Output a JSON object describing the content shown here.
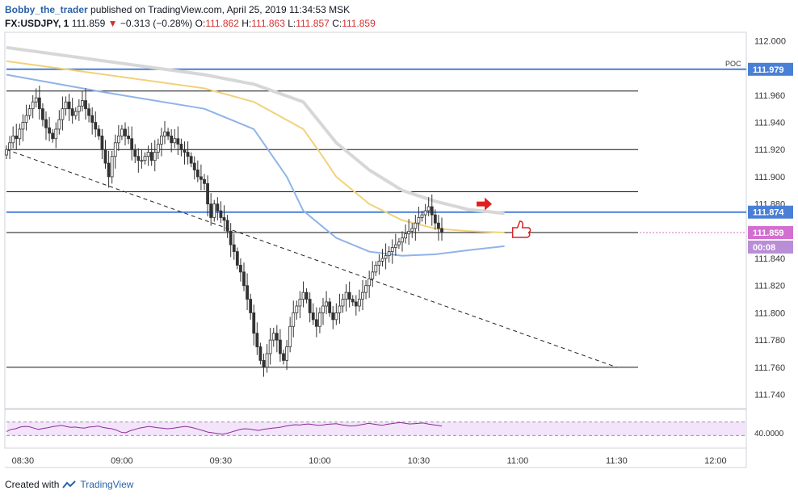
{
  "header": {
    "author": "Bobby_the_trader",
    "published": "published on TradingView.com, April 25, 2019 11:34:53 MSK",
    "symbol": "FX:USDJPY, 1",
    "last": "111.859",
    "change": "−0.313 (−0.28%)",
    "ohlc": {
      "o_label": "O:",
      "o": "111.862",
      "h_label": "H:",
      "h": "111.863",
      "l_label": "L:",
      "l": "111.857",
      "c_label": "C:",
      "c": "111.859"
    }
  },
  "footer": {
    "created_with": "Created with",
    "brand": "TradingView"
  },
  "colors": {
    "up": "#333333",
    "down": "#333333",
    "sma_gray": "#d7d7d7",
    "sma_yellow": "#f1d27a",
    "sma_blue": "#90b4e8",
    "level_blue": "#4a7fd6",
    "last_price": "#d36fd0",
    "rsi": "#8a2f97",
    "rsi_fill": "#f3e3fb"
  },
  "chart_data": {
    "type": "candlestick",
    "x_ticks": [
      "08:30",
      "09:00",
      "09:30",
      "10:00",
      "10:30",
      "11:00",
      "11:30",
      "12:00"
    ],
    "y_ticks": [
      "112.000",
      "111.960",
      "111.940",
      "111.920",
      "111.900",
      "111.880",
      "111.840",
      "111.820",
      "111.800",
      "111.780",
      "111.760",
      "111.740"
    ],
    "ylim": [
      111.732,
      112.005
    ],
    "start_time": "08:25",
    "bar_minutes": 1,
    "horizontal_levels_black": [
      111.963,
      111.92,
      111.889,
      111.76
    ],
    "poc": {
      "label": "POC",
      "value": 111.979,
      "text": "111.979"
    },
    "resistance": {
      "value": 111.874,
      "text": "111.874"
    },
    "last_price": {
      "value": 111.859,
      "text": "111.859",
      "countdown": "00:08"
    },
    "trendline": {
      "from": [
        "08:25",
        111.92
      ],
      "to": [
        "11:30",
        111.76
      ]
    },
    "candles_path": [
      111.92,
      111.925,
      111.93,
      111.928,
      111.935,
      111.94,
      111.945,
      111.95,
      111.955,
      111.958,
      111.95,
      111.942,
      111.936,
      111.932,
      111.928,
      111.935,
      111.942,
      111.95,
      111.955,
      111.95,
      111.945,
      111.948,
      111.952,
      111.956,
      111.95,
      111.945,
      111.94,
      111.935,
      111.93,
      111.92,
      111.91,
      111.9,
      111.915,
      111.925,
      111.93,
      111.935,
      111.93,
      111.928,
      111.92,
      111.915,
      111.912,
      111.912,
      111.915,
      111.918,
      111.912,
      111.918,
      111.924,
      111.93,
      111.933,
      111.93,
      111.925,
      111.928,
      111.924,
      111.92,
      111.918,
      111.915,
      111.91,
      111.905,
      111.9,
      111.898,
      111.895,
      111.88,
      111.87,
      111.88,
      111.875,
      111.87,
      111.868,
      111.86,
      111.85,
      111.845,
      111.835,
      111.83,
      111.82,
      111.81,
      111.8,
      111.785,
      111.775,
      111.765,
      111.76,
      111.77,
      111.78,
      111.785,
      111.78,
      111.77,
      111.765,
      111.775,
      111.79,
      111.8,
      111.805,
      111.81,
      111.815,
      111.81,
      111.8,
      111.795,
      111.79,
      111.8,
      111.805,
      111.808,
      111.8,
      111.795,
      111.8,
      111.805,
      111.81,
      111.815,
      111.81,
      111.808,
      111.805,
      111.81,
      111.815,
      111.82,
      111.825,
      111.83,
      111.835,
      111.838,
      111.84,
      111.842,
      111.845,
      111.848,
      111.85,
      111.852,
      111.855,
      111.858,
      111.86,
      111.862,
      111.866,
      111.87,
      111.872,
      111.875,
      111.878,
      111.872,
      111.866,
      111.862,
      111.859
    ],
    "sma_gray": [
      [
        0,
        111.995
      ],
      [
        30,
        111.985
      ],
      [
        60,
        111.975
      ],
      [
        75,
        111.968
      ],
      [
        90,
        111.955
      ],
      [
        95,
        111.94
      ],
      [
        100,
        111.925
      ],
      [
        110,
        111.905
      ],
      [
        120,
        111.89
      ],
      [
        130,
        111.882
      ],
      [
        140,
        111.876
      ],
      [
        151,
        111.873
      ]
    ],
    "sma_yellow": [
      [
        0,
        111.985
      ],
      [
        30,
        111.975
      ],
      [
        60,
        111.965
      ],
      [
        75,
        111.955
      ],
      [
        90,
        111.935
      ],
      [
        95,
        111.918
      ],
      [
        100,
        111.9
      ],
      [
        110,
        111.88
      ],
      [
        120,
        111.868
      ],
      [
        130,
        111.862
      ],
      [
        140,
        111.86
      ],
      [
        151,
        111.859
      ]
    ],
    "sma_blue": [
      [
        0,
        111.975
      ],
      [
        30,
        111.962
      ],
      [
        60,
        111.95
      ],
      [
        75,
        111.935
      ],
      [
        85,
        111.9
      ],
      [
        90,
        111.875
      ],
      [
        100,
        111.855
      ],
      [
        110,
        111.845
      ],
      [
        120,
        111.842
      ],
      [
        130,
        111.843
      ],
      [
        140,
        111.846
      ],
      [
        151,
        111.849
      ]
    ],
    "markers": [
      {
        "type": "arrow-right",
        "at": [
          145,
          111.88
        ]
      },
      {
        "type": "thumbs-up",
        "at": [
          152,
          111.859
        ]
      }
    ],
    "rsi": {
      "label": "40.0000",
      "upper": 70,
      "lower": 30,
      "values": [
        42,
        48,
        50,
        55,
        57,
        56,
        52,
        48,
        51,
        53,
        56,
        58,
        60,
        57,
        54,
        55,
        53,
        52,
        55,
        56,
        58,
        54,
        52,
        50,
        46,
        40,
        38,
        44,
        48,
        52,
        54,
        57,
        55,
        53,
        52,
        50,
        51,
        53,
        55,
        57,
        55,
        52,
        48,
        44,
        40,
        38,
        36,
        34,
        36,
        40,
        44,
        48,
        50,
        49,
        47,
        45,
        48,
        50,
        52,
        53,
        55,
        58,
        60,
        62,
        61,
        63,
        64,
        62,
        60,
        61,
        63,
        64,
        65,
        62,
        60,
        58,
        59,
        61,
        63,
        66,
        64,
        62,
        60,
        63,
        65,
        67,
        68,
        66,
        64,
        65,
        66,
        67,
        64,
        62,
        60,
        58
      ]
    }
  }
}
